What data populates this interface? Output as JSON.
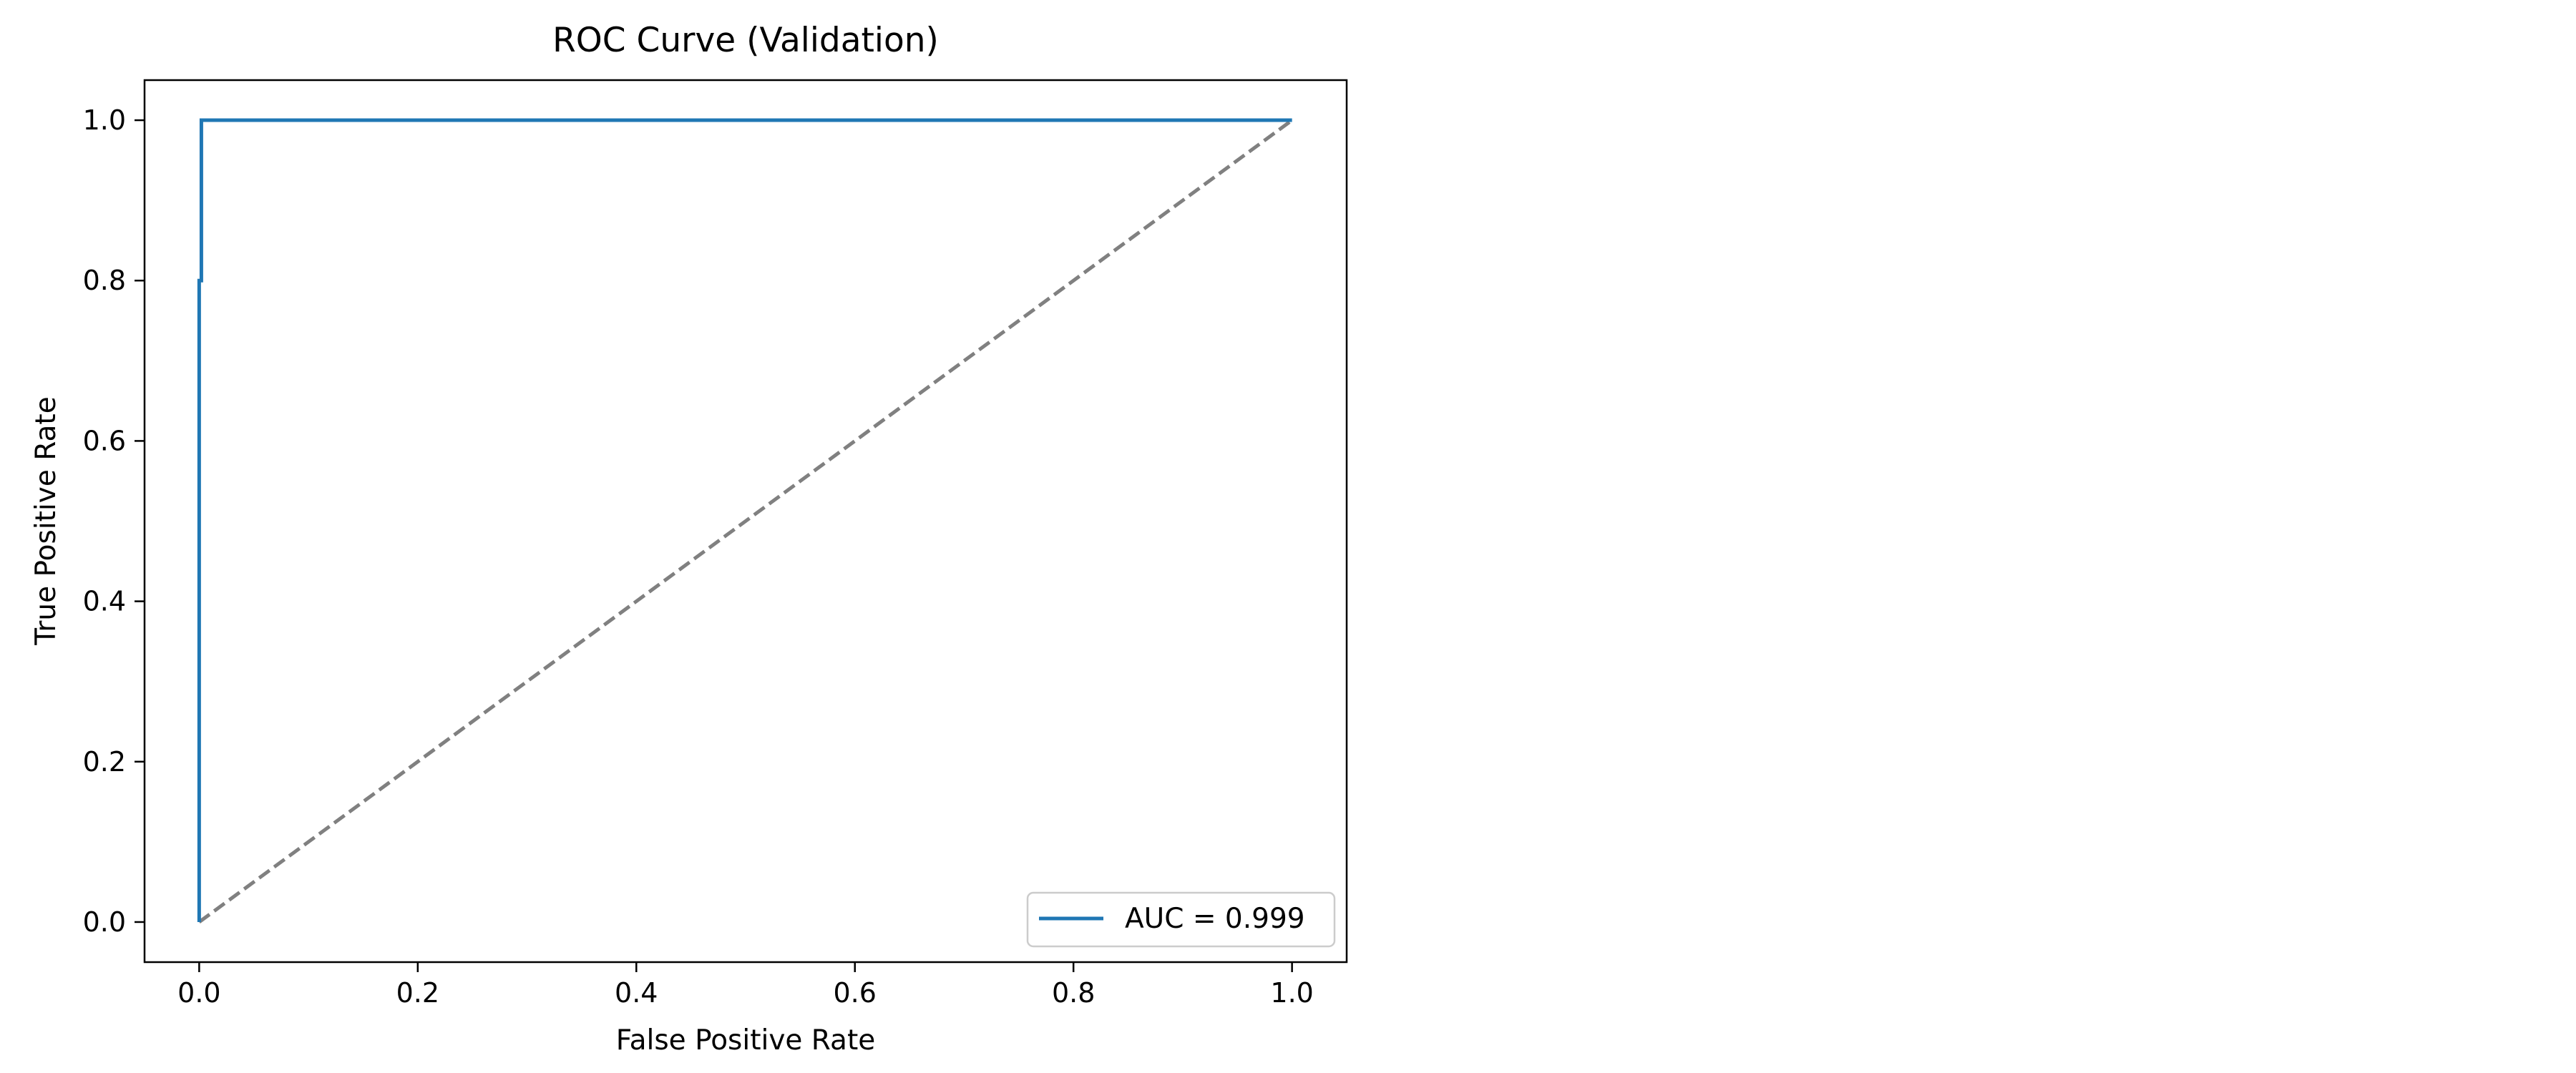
{
  "chart_data": {
    "type": "line",
    "title": "ROC Curve (Validation)",
    "xlabel": "False Positive Rate",
    "ylabel": "True Positive Rate",
    "xlim": [
      -0.05,
      1.05
    ],
    "ylim": [
      -0.05,
      1.05
    ],
    "x_ticks": [
      0.0,
      0.2,
      0.4,
      0.6,
      0.8,
      1.0
    ],
    "x_tick_labels": [
      "0.0",
      "0.2",
      "0.4",
      "0.6",
      "0.8",
      "1.0"
    ],
    "y_ticks": [
      0.0,
      0.2,
      0.4,
      0.6,
      0.8,
      1.0
    ],
    "y_tick_labels": [
      "0.0",
      "0.2",
      "0.4",
      "0.6",
      "0.8",
      "1.0"
    ],
    "grid": false,
    "legend_position": "lower-right",
    "series": [
      {
        "name": "AUC = 0.999",
        "color": "#1f77b4",
        "style": "solid",
        "x": [
          0.0,
          0.0,
          0.0,
          0.0,
          0.002,
          0.002,
          0.002,
          1.0
        ],
        "y": [
          0.0,
          0.4,
          0.7,
          0.8,
          0.8,
          0.9,
          1.0,
          1.0
        ]
      }
    ],
    "reference_line": {
      "color": "#808080",
      "style": "dashed",
      "x": [
        0.0,
        1.0
      ],
      "y": [
        0.0,
        1.0
      ]
    }
  }
}
